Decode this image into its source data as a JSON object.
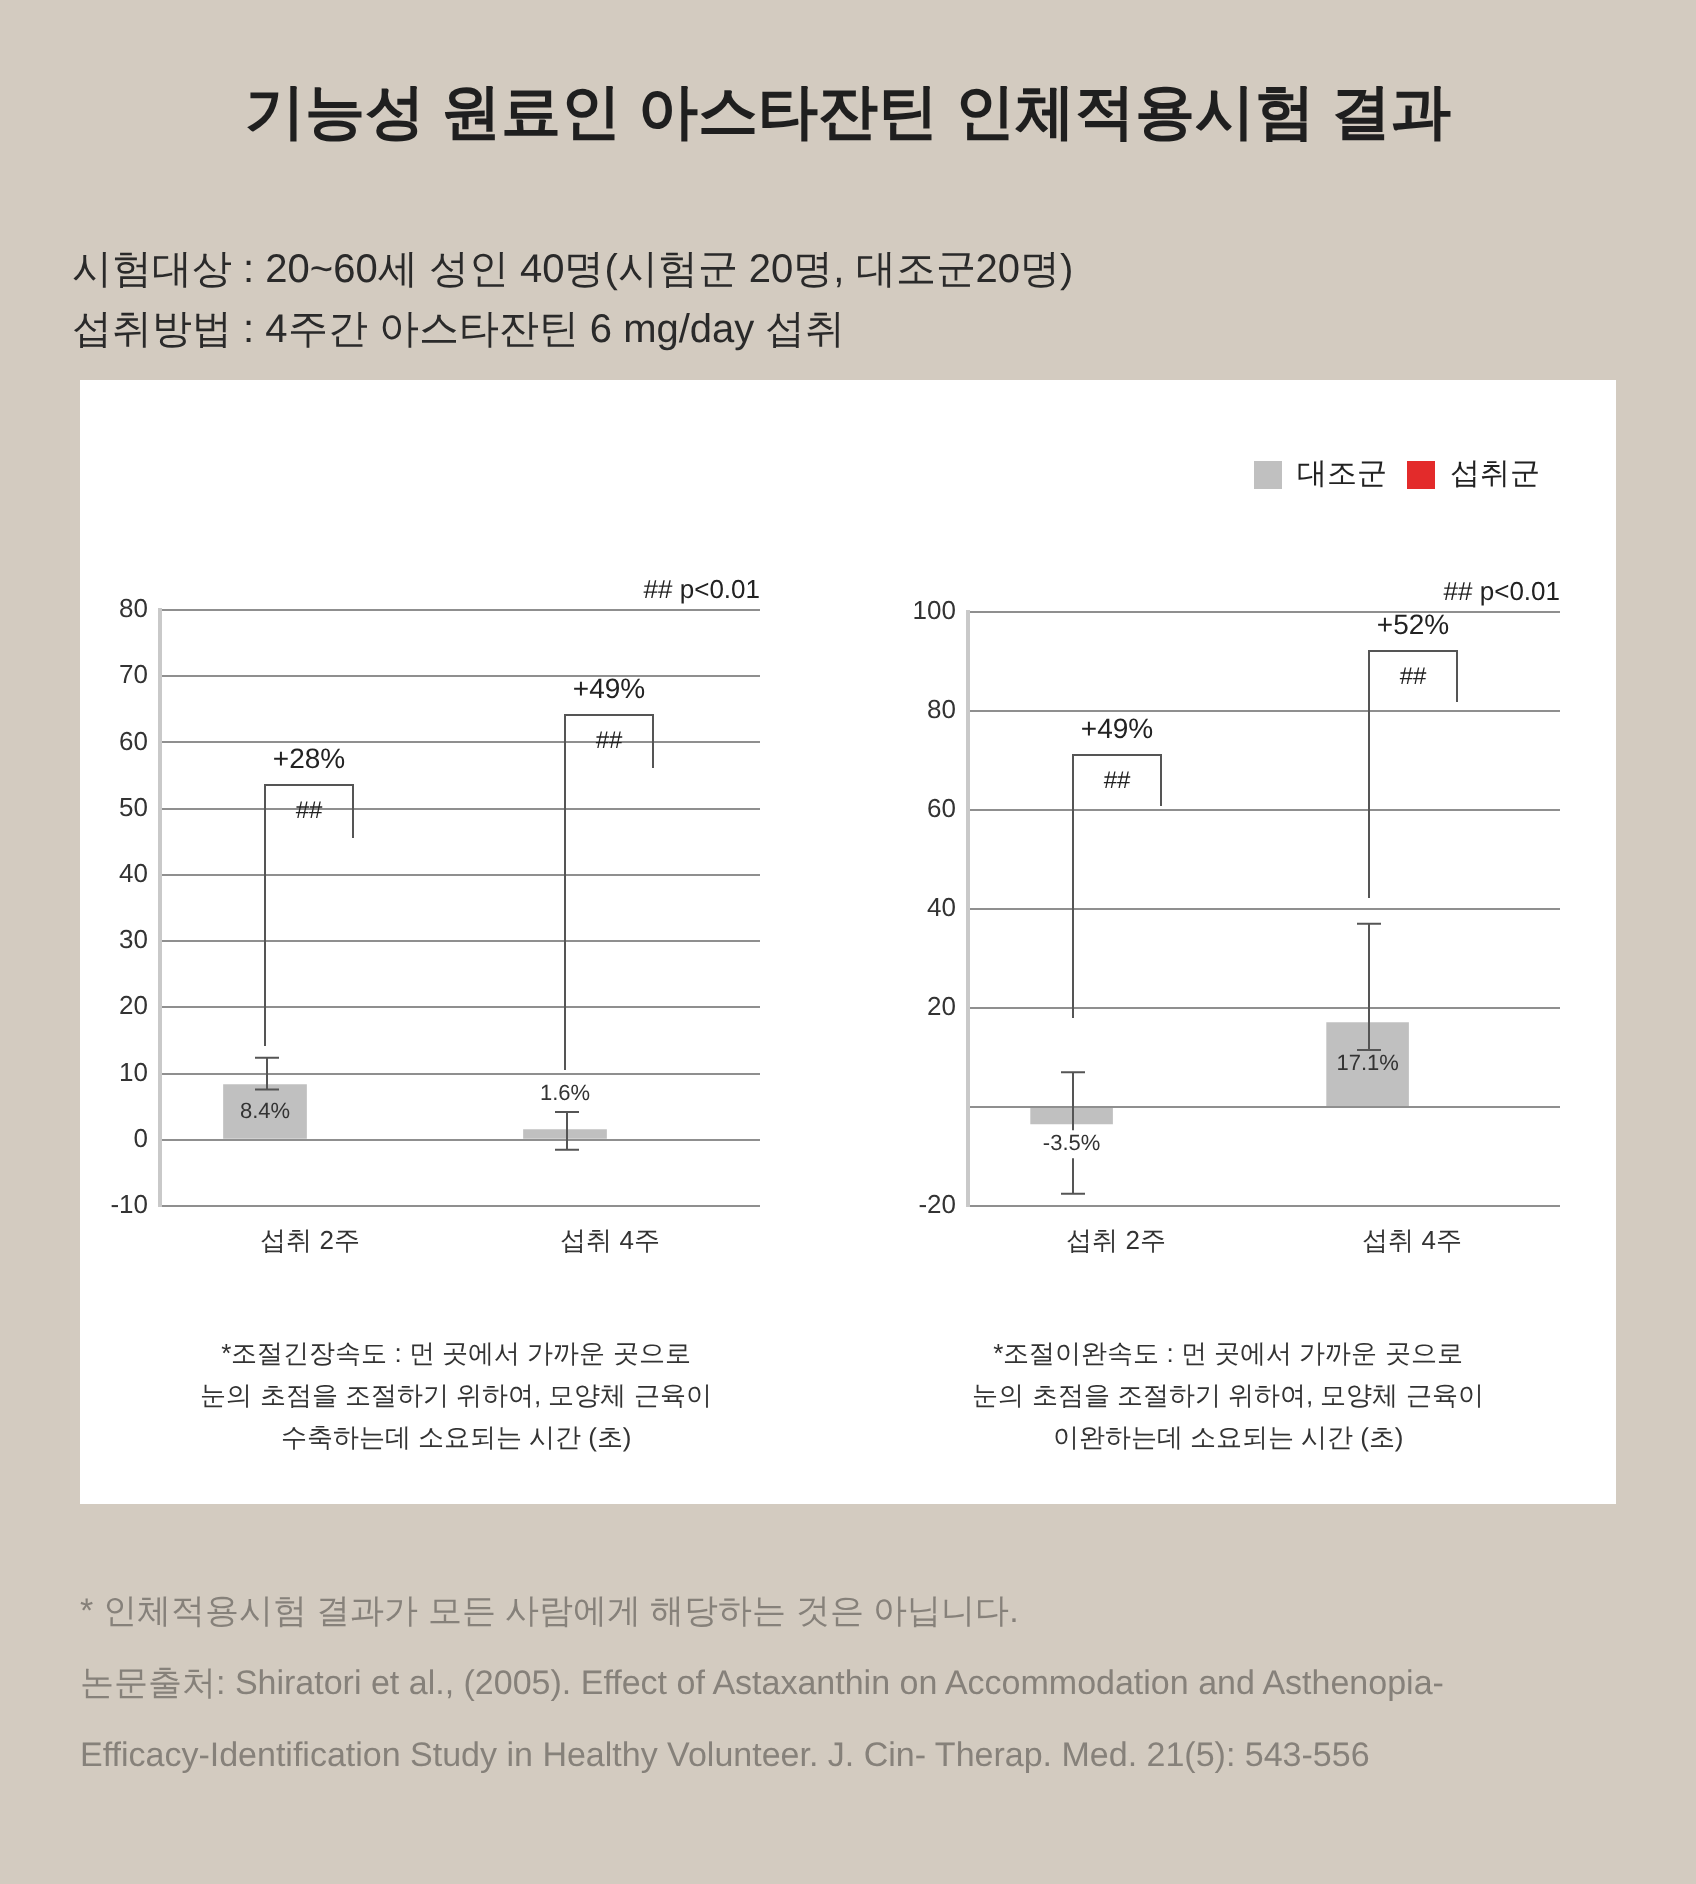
{
  "chart_data": [
    {
      "type": "bar",
      "title": "기능성 원료인 아스타잔틴 인체적용시험 결과",
      "subtitle": "시험대상 : 20~60세 성인 40명(시험군 20명, 대조군20명)\n섭취방법 : 4주간 아스타잔틴 6 mg/day 섭취",
      "categories": [
        "섭취 2주",
        "섭취 4주"
      ],
      "series": [
        {
          "color": "#c0c0c0",
          "values": [
            8.4,
            1.6
          ],
          "errors": [
            [
              7.6,
              12.4
            ],
            [
              -1.5,
              4.2
            ]
          ],
          "value_labels": [
            "8.4%",
            "1.6%"
          ]
        },
        {
          "values": [
            null,
            null
          ]
        }
      ],
      "ylim": [
        -10,
        80
      ],
      "yticks": [
        -10,
        0,
        10,
        20,
        30,
        40,
        50,
        60,
        70,
        80
      ],
      "grid": "y",
      "legend": false,
      "annotations": [
        "## p<0.01",
        "*조절긴장속도 : 먼 곳에서 가까운 곳으로\n눈의 초점을 조절하기 위하여, 모양체 근육이\n수축하는데 소요되는 시간 (초)",
        "+28%",
        "##",
        "+49%",
        "##"
      ]
    },
    {
      "type": "bar",
      "categories": [
        "섭취 2주",
        "섭취 4주"
      ],
      "series": [
        {
          "name": "대조군",
          "color": "#c0c0c0",
          "values": [
            -3.5,
            17.1
          ],
          "errors": [
            [
              -17.5,
              7
            ],
            [
              11.5,
              37
            ]
          ],
          "value_labels": [
            "-3.5%",
            "17.1%"
          ]
        },
        {
          "name": "섭취군",
          "color": "#e32b2b",
          "values": [
            null,
            null
          ]
        }
      ],
      "ylim": [
        -20,
        100
      ],
      "yticks": [
        -20,
        {
          "value": 0,
          "label": null
        },
        20,
        40,
        60,
        80,
        100
      ],
      "grid": "y",
      "legend": "top right",
      "annotations": [
        "## p<0.01",
        "*조절이완속도 : 먼 곳에서 가까운 곳으로\n눈의 초점을 조절하기 위하여, 모양체 근육이\n이완하는데 소요되는 시간 (초)",
        "+49%",
        "##",
        "+52%",
        "##",
        "* 인체적용시험 결과가 모든 사람에게 해당하는 것은 아닙니다.",
        "논문출처: Shiratori et al., (2005). Effect of Astaxanthin on Accommodation and Asthenopia-Efficacy-Identification Study in Healthy Volunteer. J. Cin- Therap. Med. 21(5): 543-556"
      ]
    }
  ]
}
